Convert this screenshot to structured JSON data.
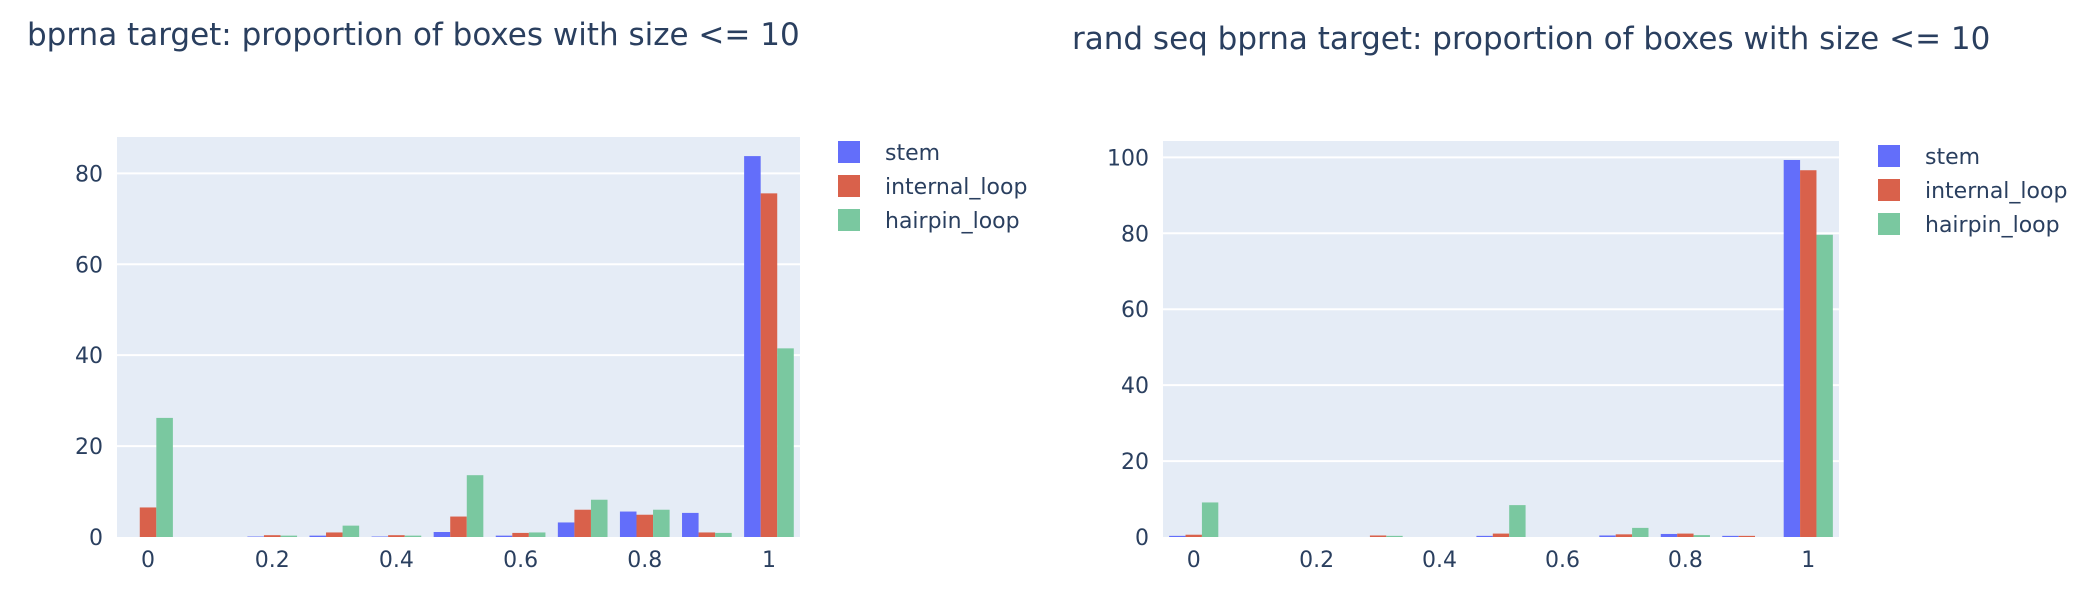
{
  "colors": {
    "stem": "#636efa",
    "internal_loop": "#d9614b",
    "hairpin_loop": "#7ac8a0",
    "plot_bg": "#e5ecf6",
    "grid": "#ffffff",
    "text": "#2a3f5f"
  },
  "chart_data": [
    {
      "type": "bar",
      "title": "bprna target: proportion of boxes with size <= 10",
      "xlabel": "",
      "ylabel": "",
      "x_ticks": [
        0,
        0.2,
        0.4,
        0.6,
        0.8,
        1
      ],
      "x_tick_labels": [
        "0",
        "0.2",
        "0.4",
        "0.6",
        "0.8",
        "1"
      ],
      "y_ticks": [
        0,
        20,
        40,
        60,
        80
      ],
      "y_tick_labels": [
        "0",
        "20",
        "40",
        "60",
        "80"
      ],
      "xlim": [
        -0.05,
        1.05
      ],
      "ylim": [
        0,
        88
      ],
      "bin_centers": [
        0,
        0.1,
        0.2,
        0.3,
        0.4,
        0.5,
        0.6,
        0.7,
        0.8,
        0.9,
        1.0
      ],
      "legend_position": "top-right",
      "series": [
        {
          "name": "stem",
          "values": [
            0,
            0,
            0.1,
            0.3,
            0.1,
            1.1,
            0.3,
            3.2,
            5.6,
            5.3,
            83.8
          ]
        },
        {
          "name": "internal_loop",
          "values": [
            6.5,
            0,
            0.4,
            1.0,
            0.4,
            4.5,
            0.9,
            6.0,
            4.9,
            1.0,
            75.6
          ]
        },
        {
          "name": "hairpin_loop",
          "values": [
            26.2,
            0,
            0.3,
            2.5,
            0.3,
            13.6,
            1.0,
            8.2,
            6.0,
            0.9,
            41.5
          ]
        }
      ]
    },
    {
      "type": "bar",
      "title": "rand seq bprna target: proportion of boxes with size <= 10",
      "xlabel": "",
      "ylabel": "",
      "x_ticks": [
        0,
        0.2,
        0.4,
        0.6,
        0.8,
        1
      ],
      "x_tick_labels": [
        "0",
        "0.2",
        "0.4",
        "0.6",
        "0.8",
        "1"
      ],
      "y_ticks": [
        0,
        20,
        40,
        60,
        80,
        100
      ],
      "y_tick_labels": [
        "0",
        "20",
        "40",
        "60",
        "80",
        "100"
      ],
      "xlim": [
        -0.05,
        1.05
      ],
      "ylim": [
        0,
        104.3
      ],
      "bin_centers": [
        0,
        0.1,
        0.2,
        0.3,
        0.4,
        0.5,
        0.6,
        0.7,
        0.8,
        0.9,
        1.0
      ],
      "legend_position": "top-right",
      "series": [
        {
          "name": "stem",
          "values": [
            0.3,
            0,
            0,
            0,
            0,
            0.3,
            0,
            0.4,
            0.8,
            0.3,
            99.3
          ]
        },
        {
          "name": "internal_loop",
          "values": [
            0.6,
            0,
            0,
            0.4,
            0,
            0.9,
            0,
            0.7,
            0.9,
            0.3,
            96.6
          ]
        },
        {
          "name": "hairpin_loop",
          "values": [
            9.1,
            0,
            0,
            0.3,
            0,
            8.4,
            0,
            2.4,
            0.5,
            0,
            79.6
          ]
        }
      ]
    }
  ]
}
